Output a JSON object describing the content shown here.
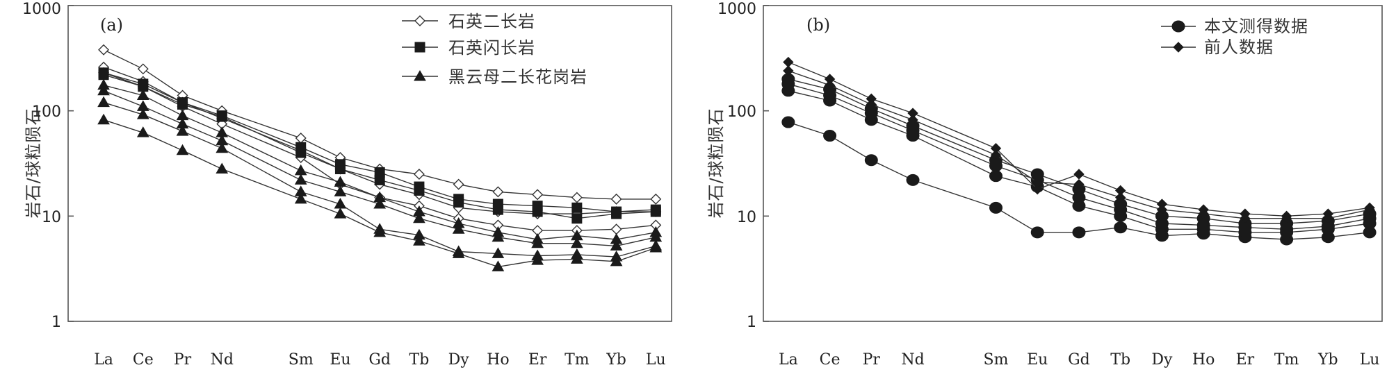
{
  "chart_data": [
    {
      "type": "line",
      "panel_label": "(a)",
      "ylabel": "岩石/球粒陨石",
      "yscale": "log",
      "ylim": [
        1,
        1000
      ],
      "yticks": [
        "1",
        "10",
        "100",
        "1000"
      ],
      "categories": [
        "La",
        "Ce",
        "Pr",
        "Nd",
        "Sm",
        "Eu",
        "Gd",
        "Tb",
        "Dy",
        "Ho",
        "Er",
        "Tm",
        "Yb",
        "Lu"
      ],
      "x_positions": [
        1,
        2,
        3,
        4,
        6,
        7,
        8,
        9,
        10,
        11,
        12,
        13,
        14,
        15
      ],
      "legend": [
        {
          "label": "石英二长岩",
          "marker": "diamond-open"
        },
        {
          "label": "石英闪长岩",
          "marker": "square"
        },
        {
          "label": "黑云母二长花岗岩",
          "marker": "triangle"
        }
      ],
      "series": [
        {
          "group": "石英二长岩",
          "marker": "diamond-open",
          "values": [
            380,
            250,
            140,
            100,
            55,
            36,
            28,
            25,
            20,
            17,
            16,
            15,
            14.5,
            14.5
          ]
        },
        {
          "group": "石英二长岩",
          "marker": "diamond-open",
          "values": [
            260,
            190,
            120,
            85,
            42,
            28,
            20,
            16,
            12,
            11,
            10.5,
            10.5,
            11,
            11
          ]
        },
        {
          "group": "石英二长岩",
          "marker": "diamond-open",
          "values": [
            230,
            170,
            110,
            75,
            36,
            20,
            15,
            12.5,
            9.5,
            8.2,
            7.3,
            7.3,
            7.5,
            8.2
          ]
        },
        {
          "group": "石英闪长岩",
          "marker": "square",
          "values": [
            230,
            180,
            120,
            90,
            45,
            31,
            26,
            19,
            14.5,
            13,
            12.5,
            12,
            11,
            11.5
          ]
        },
        {
          "group": "石英闪长岩",
          "marker": "square",
          "values": [
            220,
            170,
            115,
            88,
            40,
            28,
            22,
            17.5,
            13.5,
            11.5,
            11,
            9.5,
            10.5,
            11
          ]
        },
        {
          "group": "黑云母二长花岗岩",
          "marker": "triangle",
          "values": [
            175,
            140,
            90,
            62,
            27,
            21,
            15,
            11,
            8.5,
            7,
            6,
            6.5,
            6,
            7
          ]
        },
        {
          "group": "黑云母二长花岗岩",
          "marker": "triangle",
          "values": [
            155,
            110,
            75,
            52,
            22,
            17,
            13,
            9.5,
            7.5,
            6.3,
            5.5,
            5.5,
            5.2,
            6.3
          ]
        },
        {
          "group": "黑云母二长花岗岩",
          "marker": "triangle",
          "values": [
            120,
            92,
            64,
            44,
            17,
            13,
            7.5,
            6.6,
            4.6,
            4.4,
            4.2,
            4.3,
            4.1,
            5.2
          ]
        },
        {
          "group": "黑云母二长花岗岩",
          "marker": "triangle",
          "values": [
            82,
            62,
            42,
            28,
            14.5,
            10.5,
            7,
            5.8,
            4.4,
            3.3,
            3.8,
            3.9,
            3.7,
            5.0
          ]
        }
      ]
    },
    {
      "type": "line",
      "panel_label": "(b)",
      "ylabel": "岩石/球粒陨石",
      "yscale": "log",
      "ylim": [
        1,
        1000
      ],
      "yticks": [
        "1",
        "10",
        "100",
        "1000"
      ],
      "categories": [
        "La",
        "Ce",
        "Pr",
        "Nd",
        "Sm",
        "Eu",
        "Gd",
        "Tb",
        "Dy",
        "Ho",
        "Er",
        "Tm",
        "Yb",
        "Lu"
      ],
      "x_positions": [
        1,
        2,
        3,
        4,
        6,
        7,
        8,
        9,
        10,
        11,
        12,
        13,
        14,
        15
      ],
      "legend": [
        {
          "label": "本文测得数据",
          "marker": "circle"
        },
        {
          "label": "前人数据",
          "marker": "diamond"
        }
      ],
      "series": [
        {
          "group": "本文测得数据",
          "marker": "circle",
          "values": [
            78,
            58,
            34,
            22,
            12,
            7,
            7,
            7.8,
            6.5,
            6.8,
            6.3,
            6,
            6.3,
            7
          ]
        },
        {
          "group": "本文测得数据",
          "marker": "circle",
          "values": [
            155,
            125,
            82,
            58,
            24,
            19,
            12.5,
            10,
            7.5,
            7.5,
            7,
            7,
            7.5,
            8.5
          ]
        },
        {
          "group": "本文测得数据",
          "marker": "circle",
          "values": [
            180,
            140,
            95,
            65,
            30,
            22,
            15,
            11.5,
            8.5,
            8.2,
            7.8,
            7.5,
            8,
            9.5
          ]
        },
        {
          "group": "本文测得数据",
          "marker": "circle",
          "values": [
            200,
            160,
            105,
            72,
            34,
            25,
            18,
            13,
            10,
            9.5,
            8.5,
            8.5,
            9,
            10.5
          ]
        },
        {
          "group": "前人数据",
          "marker": "diamond",
          "values": [
            290,
            200,
            130,
            95,
            44,
            18,
            25,
            17.5,
            13,
            11.5,
            10.5,
            10,
            10.5,
            12
          ]
        },
        {
          "group": "前人数据",
          "marker": "diamond",
          "values": [
            240,
            175,
            115,
            82,
            38,
            21,
            20,
            15,
            11.5,
            10.5,
            9.5,
            9.5,
            9.5,
            11.5
          ]
        }
      ]
    }
  ]
}
